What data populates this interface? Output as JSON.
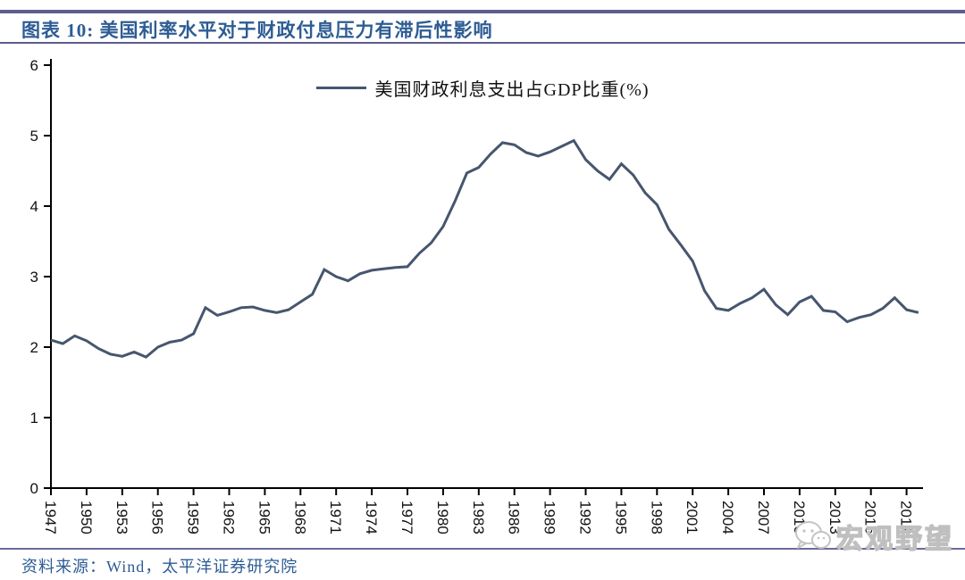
{
  "header": {
    "title": "图表 10:  美国利率水平对于财政付息压力有滞后性影响"
  },
  "legend": {
    "label": "美国财政利息支出占GDP比重(%)"
  },
  "footer": {
    "source": "资料来源：Wind，太平洋证券研究院"
  },
  "watermark": {
    "text": "宏观野望",
    "icon": "wechat-bubbles-icon"
  },
  "chart_data": {
    "type": "line",
    "title": "图表 10:  美国利率水平对于财政付息压力有滞后性影响",
    "xlabel": "",
    "ylabel": "",
    "ylim": [
      0,
      6
    ],
    "yticks": [
      0,
      1,
      2,
      3,
      4,
      5,
      6
    ],
    "xticks": [
      1947,
      1950,
      1953,
      1956,
      1959,
      1962,
      1965,
      1968,
      1971,
      1974,
      1977,
      1980,
      1983,
      1986,
      1989,
      1992,
      1995,
      1998,
      2001,
      2004,
      2007,
      2010,
      2013,
      2016,
      2019
    ],
    "xtick_rotation_deg": 90,
    "grid": false,
    "legend_position": "top-center",
    "line_color": "#46566E",
    "axis_color": "#000000",
    "series": [
      {
        "name": "美国财政利息支出占GDP比重(%)",
        "x": [
          1947,
          1948,
          1949,
          1950,
          1951,
          1952,
          1953,
          1954,
          1955,
          1956,
          1957,
          1958,
          1959,
          1960,
          1961,
          1962,
          1963,
          1964,
          1965,
          1966,
          1967,
          1968,
          1969,
          1970,
          1971,
          1972,
          1973,
          1974,
          1975,
          1976,
          1977,
          1978,
          1979,
          1980,
          1981,
          1982,
          1983,
          1984,
          1985,
          1986,
          1987,
          1988,
          1989,
          1990,
          1991,
          1992,
          1993,
          1994,
          1995,
          1996,
          1997,
          1998,
          1999,
          2000,
          2001,
          2002,
          2003,
          2004,
          2005,
          2006,
          2007,
          2008,
          2009,
          2010,
          2011,
          2012,
          2013,
          2014,
          2015,
          2016,
          2017,
          2018,
          2019,
          2020
        ],
        "values": [
          2.1,
          2.05,
          2.16,
          2.09,
          1.98,
          1.9,
          1.87,
          1.93,
          1.86,
          2.0,
          2.07,
          2.1,
          2.19,
          2.56,
          2.45,
          2.5,
          2.56,
          2.57,
          2.52,
          2.49,
          2.53,
          2.64,
          2.75,
          3.1,
          3.0,
          2.94,
          3.04,
          3.09,
          3.11,
          3.13,
          3.14,
          3.33,
          3.48,
          3.71,
          4.07,
          4.47,
          4.55,
          4.74,
          4.9,
          4.87,
          4.76,
          4.71,
          4.77,
          4.85,
          4.93,
          4.66,
          4.5,
          4.38,
          4.6,
          4.44,
          4.19,
          4.02,
          3.67,
          3.45,
          3.22,
          2.8,
          2.55,
          2.52,
          2.62,
          2.7,
          2.82,
          2.6,
          2.46,
          2.64,
          2.72,
          2.52,
          2.5,
          2.36,
          2.42,
          2.46,
          2.55,
          2.7,
          2.53,
          2.49
        ]
      }
    ]
  }
}
